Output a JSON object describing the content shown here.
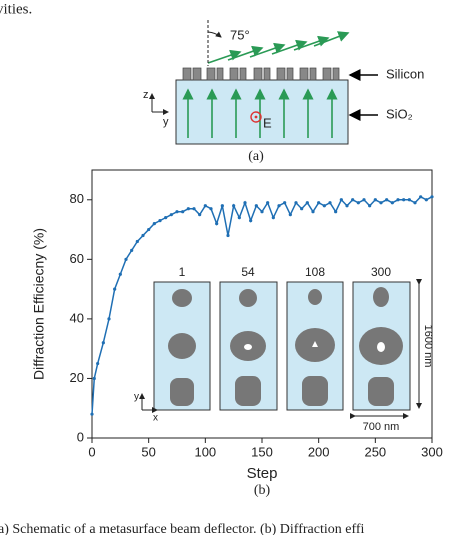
{
  "top_text": "vities.",
  "schematic": {
    "angle": "75°",
    "silicon_label": "Silicon",
    "sio2_label": "SiO₂",
    "axis_z": "z",
    "axis_y": "y",
    "field_label": "E",
    "panel_label": "(a)"
  },
  "chart_data": {
    "type": "line",
    "ylabel": "Diffraction Efficiecny (%)",
    "xlabel": "Step",
    "panel_label": "(b)",
    "x": [
      0,
      2,
      5,
      10,
      15,
      20,
      25,
      30,
      35,
      40,
      45,
      50,
      55,
      60,
      65,
      70,
      75,
      80,
      85,
      90,
      95,
      100,
      105,
      110,
      115,
      120,
      125,
      130,
      135,
      140,
      145,
      150,
      155,
      160,
      165,
      170,
      175,
      180,
      185,
      190,
      195,
      200,
      205,
      210,
      215,
      220,
      225,
      230,
      235,
      240,
      245,
      250,
      255,
      260,
      265,
      270,
      275,
      280,
      285,
      290,
      295,
      300
    ],
    "series": [
      {
        "name": "Diffraction efficiency",
        "color": "#1f6fb4",
        "values": [
          8,
          20,
          25,
          32,
          40,
          50,
          55,
          60,
          63,
          66,
          68,
          70,
          72,
          73,
          74,
          75,
          76,
          76,
          77,
          77,
          75,
          78,
          77,
          72,
          78,
          68,
          78,
          74,
          79,
          73,
          78,
          76,
          79,
          74,
          78,
          79,
          75,
          79,
          77,
          79,
          76,
          79,
          78,
          79,
          76,
          80,
          78,
          80,
          79,
          80,
          78,
          80,
          79,
          80,
          79,
          80,
          80,
          80,
          79,
          81,
          80,
          81
        ]
      }
    ],
    "xlim": [
      0,
      300
    ],
    "xticks": [
      0,
      50,
      100,
      150,
      200,
      250,
      300
    ],
    "ylim": [
      0,
      90
    ],
    "yticks": [
      0,
      20,
      40,
      60,
      80
    ],
    "grid": false
  },
  "inset": {
    "steps": [
      "1",
      "54",
      "108",
      "300"
    ],
    "height_label": "1600 nm",
    "width_label": "700 nm",
    "axis_y": "y",
    "axis_x": "x"
  },
  "caption": "a) Schematic of a metasurface beam deflector. (b) Diffraction effi"
}
